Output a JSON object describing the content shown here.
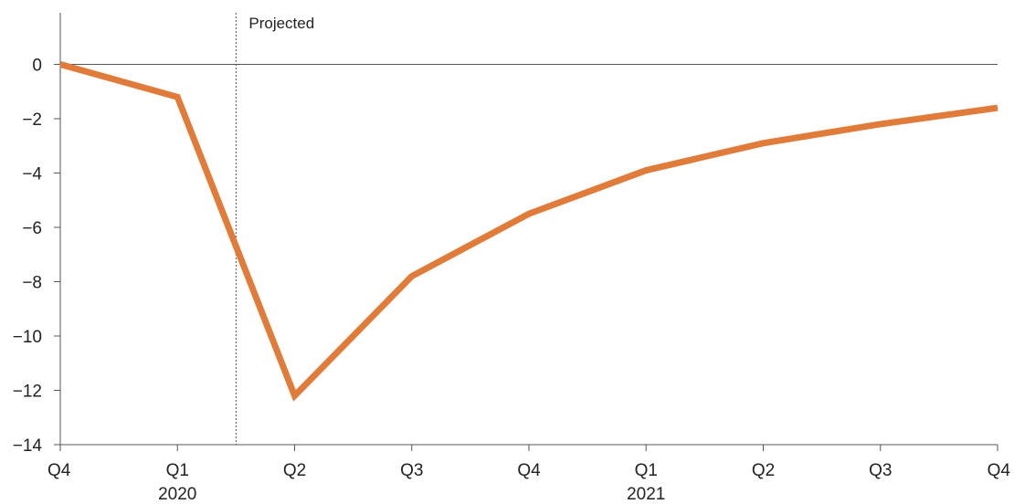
{
  "chart_data": {
    "type": "line",
    "title": "",
    "xlabel": "",
    "ylabel": "",
    "categories": [
      "Q4",
      "Q1",
      "Q2",
      "Q3",
      "Q4",
      "Q1",
      "Q2",
      "Q3",
      "Q4"
    ],
    "year_labels": [
      {
        "label": "2020",
        "category_index": 1
      },
      {
        "label": "2021",
        "category_index": 5
      }
    ],
    "series": [
      {
        "color": "#e07b39",
        "values": [
          0,
          -1.2,
          -12.2,
          -7.8,
          -5.5,
          -3.9,
          -2.9,
          -2.2,
          -1.6
        ]
      }
    ],
    "ylim": [
      -14,
      1.9
    ],
    "yticks": [
      0,
      -2,
      -4,
      -6,
      -8,
      -10,
      -12,
      -14
    ],
    "zero_line": true,
    "grid": false,
    "annotations": [
      {
        "text": "Projected",
        "x_category_position": 1.5
      }
    ]
  }
}
